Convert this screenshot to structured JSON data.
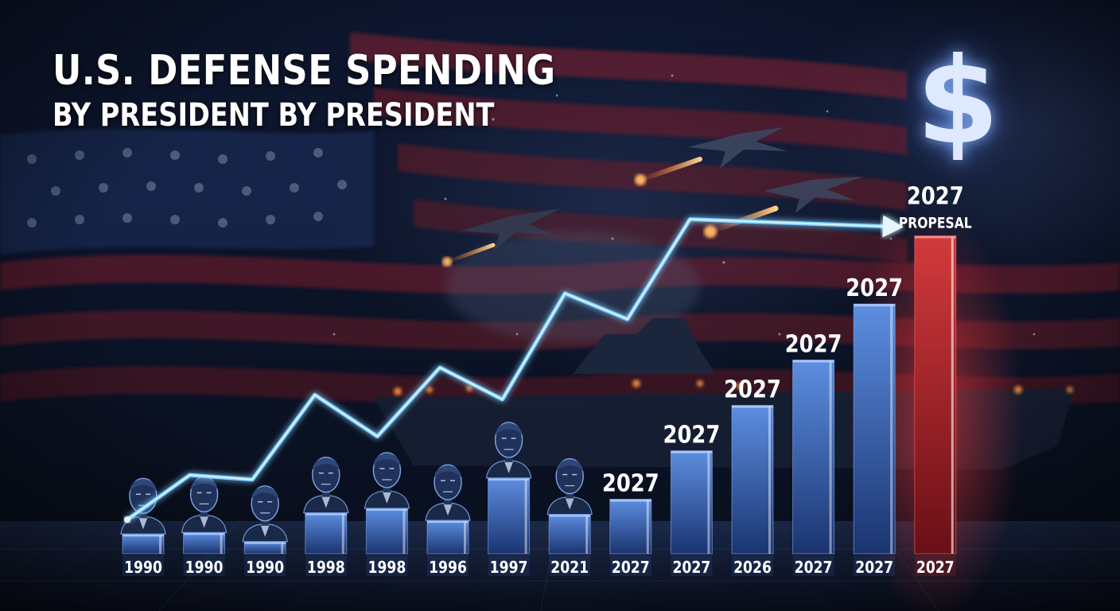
{
  "title": {
    "main": "U.S. DEFENSE SPENDING",
    "sub": "BY PRESIDENT BY PRESIDENT"
  },
  "dollar_symbol": "$",
  "colors": {
    "bar_blue_top": "#5d8ee0",
    "bar_blue_bottom": "#1a3470",
    "bar_red_top": "#d23a3c",
    "bar_red_bottom": "#6a0f16",
    "line_glow": "#7fd0ff",
    "label": "#ffffff"
  },
  "chart_data": {
    "type": "bar",
    "title": "U.S. DEFENSE SPENDING",
    "subtitle": "BY PRESIDENT BY PRESIDENT",
    "xlabel": "",
    "ylabel": "",
    "categories": [
      "1990",
      "1990",
      "1990",
      "1998",
      "1998",
      "1996",
      "1997",
      "2021",
      "2027",
      "2027",
      "2026",
      "2027",
      "2027",
      "2027"
    ],
    "values": [
      2.6,
      2.8,
      1.6,
      5.4,
      6.0,
      4.4,
      10.0,
      5.2,
      7.2,
      13.6,
      19.6,
      25.6,
      33.0,
      42.0
    ],
    "value_labels": [
      "",
      "",
      "",
      "",
      "",
      "",
      "",
      "",
      "2027",
      "2027",
      "2027",
      "2027",
      "2027",
      "2027"
    ],
    "highlight": {
      "index": 13,
      "label": "PROPESAL",
      "color": "red"
    },
    "president_busts": [
      0,
      1,
      2,
      3,
      4,
      5,
      6,
      7
    ],
    "trend_line": [
      4.5,
      10.4,
      9.8,
      21.0,
      15.5,
      24.6,
      20.4,
      34.4,
      31.0,
      44.2
    ],
    "ylim": [
      0,
      45
    ],
    "grid": false,
    "legend": "none"
  }
}
